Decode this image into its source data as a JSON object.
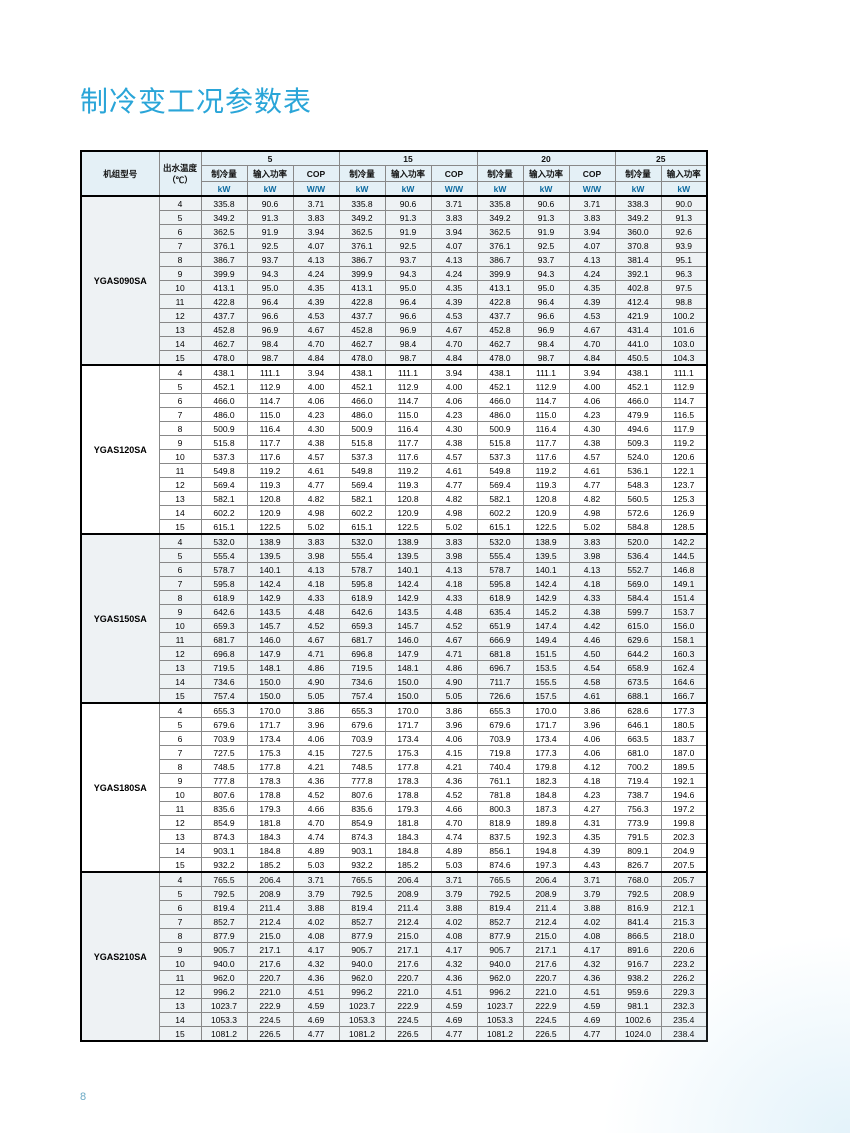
{
  "title": "制冷变工况参数表",
  "page_number": "8",
  "colors": {
    "title": "#2aa5d8",
    "header_bg": "#e4f0f6",
    "alt_row_bg": "#eef2f4",
    "unit_text": "#0b6aa0",
    "border": "#000000"
  },
  "headers": {
    "model": "机组型号",
    "outlet_temp": "出水温度\n（℃）",
    "groups": [
      "5",
      "15",
      "20",
      "25"
    ],
    "sub": [
      "制冷量",
      "输入功率",
      "COP"
    ],
    "sub_last": [
      "制冷量",
      "输入功率"
    ],
    "units": [
      "kW",
      "kW",
      "W/W"
    ],
    "units_last": [
      "kW",
      "kW"
    ]
  },
  "models": [
    {
      "name": "YGAS090SA",
      "alt": true,
      "rows": [
        [
          4,
          335.8,
          90.6,
          3.71,
          335.8,
          90.6,
          3.71,
          335.8,
          90.6,
          3.71,
          338.3,
          90.0
        ],
        [
          5,
          349.2,
          91.3,
          3.83,
          349.2,
          91.3,
          3.83,
          349.2,
          91.3,
          3.83,
          349.2,
          91.3
        ],
        [
          6,
          362.5,
          91.9,
          3.94,
          362.5,
          91.9,
          3.94,
          362.5,
          91.9,
          3.94,
          360.0,
          92.6
        ],
        [
          7,
          376.1,
          92.5,
          4.07,
          376.1,
          92.5,
          4.07,
          376.1,
          92.5,
          4.07,
          370.8,
          93.9
        ],
        [
          8,
          386.7,
          93.7,
          4.13,
          386.7,
          93.7,
          4.13,
          386.7,
          93.7,
          4.13,
          381.4,
          95.1
        ],
        [
          9,
          399.9,
          94.3,
          4.24,
          399.9,
          94.3,
          4.24,
          399.9,
          94.3,
          4.24,
          392.1,
          96.3
        ],
        [
          10,
          413.1,
          95.0,
          4.35,
          413.1,
          95.0,
          4.35,
          413.1,
          95.0,
          4.35,
          402.8,
          97.5
        ],
        [
          11,
          422.8,
          96.4,
          4.39,
          422.8,
          96.4,
          4.39,
          422.8,
          96.4,
          4.39,
          412.4,
          98.8
        ],
        [
          12,
          437.7,
          96.6,
          4.53,
          437.7,
          96.6,
          4.53,
          437.7,
          96.6,
          4.53,
          421.9,
          100.2
        ],
        [
          13,
          452.8,
          96.9,
          4.67,
          452.8,
          96.9,
          4.67,
          452.8,
          96.9,
          4.67,
          431.4,
          101.6
        ],
        [
          14,
          462.7,
          98.4,
          4.7,
          462.7,
          98.4,
          4.7,
          462.7,
          98.4,
          4.7,
          441.0,
          103.0
        ],
        [
          15,
          478.0,
          98.7,
          4.84,
          478.0,
          98.7,
          4.84,
          478.0,
          98.7,
          4.84,
          450.5,
          104.3
        ]
      ]
    },
    {
      "name": "YGAS120SA",
      "alt": false,
      "rows": [
        [
          4,
          438.1,
          111.1,
          3.94,
          438.1,
          111.1,
          3.94,
          438.1,
          111.1,
          3.94,
          438.1,
          111.1
        ],
        [
          5,
          452.1,
          112.9,
          4.0,
          452.1,
          112.9,
          4.0,
          452.1,
          112.9,
          4.0,
          452.1,
          112.9
        ],
        [
          6,
          466.0,
          114.7,
          4.06,
          466.0,
          114.7,
          4.06,
          466.0,
          114.7,
          4.06,
          466.0,
          114.7
        ],
        [
          7,
          486.0,
          115.0,
          4.23,
          486.0,
          115.0,
          4.23,
          486.0,
          115.0,
          4.23,
          479.9,
          116.5
        ],
        [
          8,
          500.9,
          116.4,
          4.3,
          500.9,
          116.4,
          4.3,
          500.9,
          116.4,
          4.3,
          494.6,
          117.9
        ],
        [
          9,
          515.8,
          117.7,
          4.38,
          515.8,
          117.7,
          4.38,
          515.8,
          117.7,
          4.38,
          509.3,
          119.2
        ],
        [
          10,
          537.3,
          117.6,
          4.57,
          537.3,
          117.6,
          4.57,
          537.3,
          117.6,
          4.57,
          524.0,
          120.6
        ],
        [
          11,
          549.8,
          119.2,
          4.61,
          549.8,
          119.2,
          4.61,
          549.8,
          119.2,
          4.61,
          536.1,
          122.1
        ],
        [
          12,
          569.4,
          119.3,
          4.77,
          569.4,
          119.3,
          4.77,
          569.4,
          119.3,
          4.77,
          548.3,
          123.7
        ],
        [
          13,
          582.1,
          120.8,
          4.82,
          582.1,
          120.8,
          4.82,
          582.1,
          120.8,
          4.82,
          560.5,
          125.3
        ],
        [
          14,
          602.2,
          120.9,
          4.98,
          602.2,
          120.9,
          4.98,
          602.2,
          120.9,
          4.98,
          572.6,
          126.9
        ],
        [
          15,
          615.1,
          122.5,
          5.02,
          615.1,
          122.5,
          5.02,
          615.1,
          122.5,
          5.02,
          584.8,
          128.5
        ]
      ]
    },
    {
      "name": "YGAS150SA",
      "alt": true,
      "rows": [
        [
          4,
          532.0,
          138.9,
          3.83,
          532.0,
          138.9,
          3.83,
          532.0,
          138.9,
          3.83,
          520.0,
          142.2
        ],
        [
          5,
          555.4,
          139.5,
          3.98,
          555.4,
          139.5,
          3.98,
          555.4,
          139.5,
          3.98,
          536.4,
          144.5
        ],
        [
          6,
          578.7,
          140.1,
          4.13,
          578.7,
          140.1,
          4.13,
          578.7,
          140.1,
          4.13,
          552.7,
          146.8
        ],
        [
          7,
          595.8,
          142.4,
          4.18,
          595.8,
          142.4,
          4.18,
          595.8,
          142.4,
          4.18,
          569.0,
          149.1
        ],
        [
          8,
          618.9,
          142.9,
          4.33,
          618.9,
          142.9,
          4.33,
          618.9,
          142.9,
          4.33,
          584.4,
          151.4
        ],
        [
          9,
          642.6,
          143.5,
          4.48,
          642.6,
          143.5,
          4.48,
          635.4,
          145.2,
          4.38,
          599.7,
          153.7
        ],
        [
          10,
          659.3,
          145.7,
          4.52,
          659.3,
          145.7,
          4.52,
          651.9,
          147.4,
          4.42,
          615.0,
          156.0
        ],
        [
          11,
          681.7,
          146.0,
          4.67,
          681.7,
          146.0,
          4.67,
          666.9,
          149.4,
          4.46,
          629.6,
          158.1
        ],
        [
          12,
          696.8,
          147.9,
          4.71,
          696.8,
          147.9,
          4.71,
          681.8,
          151.5,
          4.5,
          644.2,
          160.3
        ],
        [
          13,
          719.5,
          148.1,
          4.86,
          719.5,
          148.1,
          4.86,
          696.7,
          153.5,
          4.54,
          658.9,
          162.4
        ],
        [
          14,
          734.6,
          150.0,
          4.9,
          734.6,
          150.0,
          4.9,
          711.7,
          155.5,
          4.58,
          673.5,
          164.6
        ],
        [
          15,
          757.4,
          150.0,
          5.05,
          757.4,
          150.0,
          5.05,
          726.6,
          157.5,
          4.61,
          688.1,
          166.7
        ]
      ]
    },
    {
      "name": "YGAS180SA",
      "alt": false,
      "rows": [
        [
          4,
          655.3,
          170.0,
          3.86,
          655.3,
          170.0,
          3.86,
          655.3,
          170.0,
          3.86,
          628.6,
          177.3
        ],
        [
          5,
          679.6,
          171.7,
          3.96,
          679.6,
          171.7,
          3.96,
          679.6,
          171.7,
          3.96,
          646.1,
          180.5
        ],
        [
          6,
          703.9,
          173.4,
          4.06,
          703.9,
          173.4,
          4.06,
          703.9,
          173.4,
          4.06,
          663.5,
          183.7
        ],
        [
          7,
          727.5,
          175.3,
          4.15,
          727.5,
          175.3,
          4.15,
          719.8,
          177.3,
          4.06,
          681.0,
          187.0
        ],
        [
          8,
          748.5,
          177.8,
          4.21,
          748.5,
          177.8,
          4.21,
          740.4,
          179.8,
          4.12,
          700.2,
          189.5
        ],
        [
          9,
          777.8,
          178.3,
          4.36,
          777.8,
          178.3,
          4.36,
          761.1,
          182.3,
          4.18,
          719.4,
          192.1
        ],
        [
          10,
          807.6,
          178.8,
          4.52,
          807.6,
          178.8,
          4.52,
          781.8,
          184.8,
          4.23,
          738.7,
          194.6
        ],
        [
          11,
          835.6,
          179.3,
          4.66,
          835.6,
          179.3,
          4.66,
          800.3,
          187.3,
          4.27,
          756.3,
          197.2
        ],
        [
          12,
          854.9,
          181.8,
          4.7,
          854.9,
          181.8,
          4.7,
          818.9,
          189.8,
          4.31,
          773.9,
          199.8
        ],
        [
          13,
          874.3,
          184.3,
          4.74,
          874.3,
          184.3,
          4.74,
          837.5,
          192.3,
          4.35,
          791.5,
          202.3
        ],
        [
          14,
          903.1,
          184.8,
          4.89,
          903.1,
          184.8,
          4.89,
          856.1,
          194.8,
          4.39,
          809.1,
          204.9
        ],
        [
          15,
          932.2,
          185.2,
          5.03,
          932.2,
          185.2,
          5.03,
          874.6,
          197.3,
          4.43,
          826.7,
          207.5
        ]
      ]
    },
    {
      "name": "YGAS210SA",
      "alt": true,
      "rows": [
        [
          4,
          765.5,
          206.4,
          3.71,
          765.5,
          206.4,
          3.71,
          765.5,
          206.4,
          3.71,
          768.0,
          205.7
        ],
        [
          5,
          792.5,
          208.9,
          3.79,
          792.5,
          208.9,
          3.79,
          792.5,
          208.9,
          3.79,
          792.5,
          208.9
        ],
        [
          6,
          819.4,
          211.4,
          3.88,
          819.4,
          211.4,
          3.88,
          819.4,
          211.4,
          3.88,
          816.9,
          212.1
        ],
        [
          7,
          852.7,
          212.4,
          4.02,
          852.7,
          212.4,
          4.02,
          852.7,
          212.4,
          4.02,
          841.4,
          215.3
        ],
        [
          8,
          877.9,
          215.0,
          4.08,
          877.9,
          215.0,
          4.08,
          877.9,
          215.0,
          4.08,
          866.5,
          218.0
        ],
        [
          9,
          905.7,
          217.1,
          4.17,
          905.7,
          217.1,
          4.17,
          905.7,
          217.1,
          4.17,
          891.6,
          220.6
        ],
        [
          10,
          940.0,
          217.6,
          4.32,
          940.0,
          217.6,
          4.32,
          940.0,
          217.6,
          4.32,
          916.7,
          223.2
        ],
        [
          11,
          962.0,
          220.7,
          4.36,
          962.0,
          220.7,
          4.36,
          962.0,
          220.7,
          4.36,
          938.2,
          226.2
        ],
        [
          12,
          996.2,
          221.0,
          4.51,
          996.2,
          221.0,
          4.51,
          996.2,
          221.0,
          4.51,
          959.6,
          229.3
        ],
        [
          13,
          1023.7,
          222.9,
          4.59,
          1023.7,
          222.9,
          4.59,
          1023.7,
          222.9,
          4.59,
          981.1,
          232.3
        ],
        [
          14,
          1053.3,
          224.5,
          4.69,
          1053.3,
          224.5,
          4.69,
          1053.3,
          224.5,
          4.69,
          1002.6,
          235.4
        ],
        [
          15,
          1081.2,
          226.5,
          4.77,
          1081.2,
          226.5,
          4.77,
          1081.2,
          226.5,
          4.77,
          1024.0,
          238.4
        ]
      ]
    }
  ]
}
